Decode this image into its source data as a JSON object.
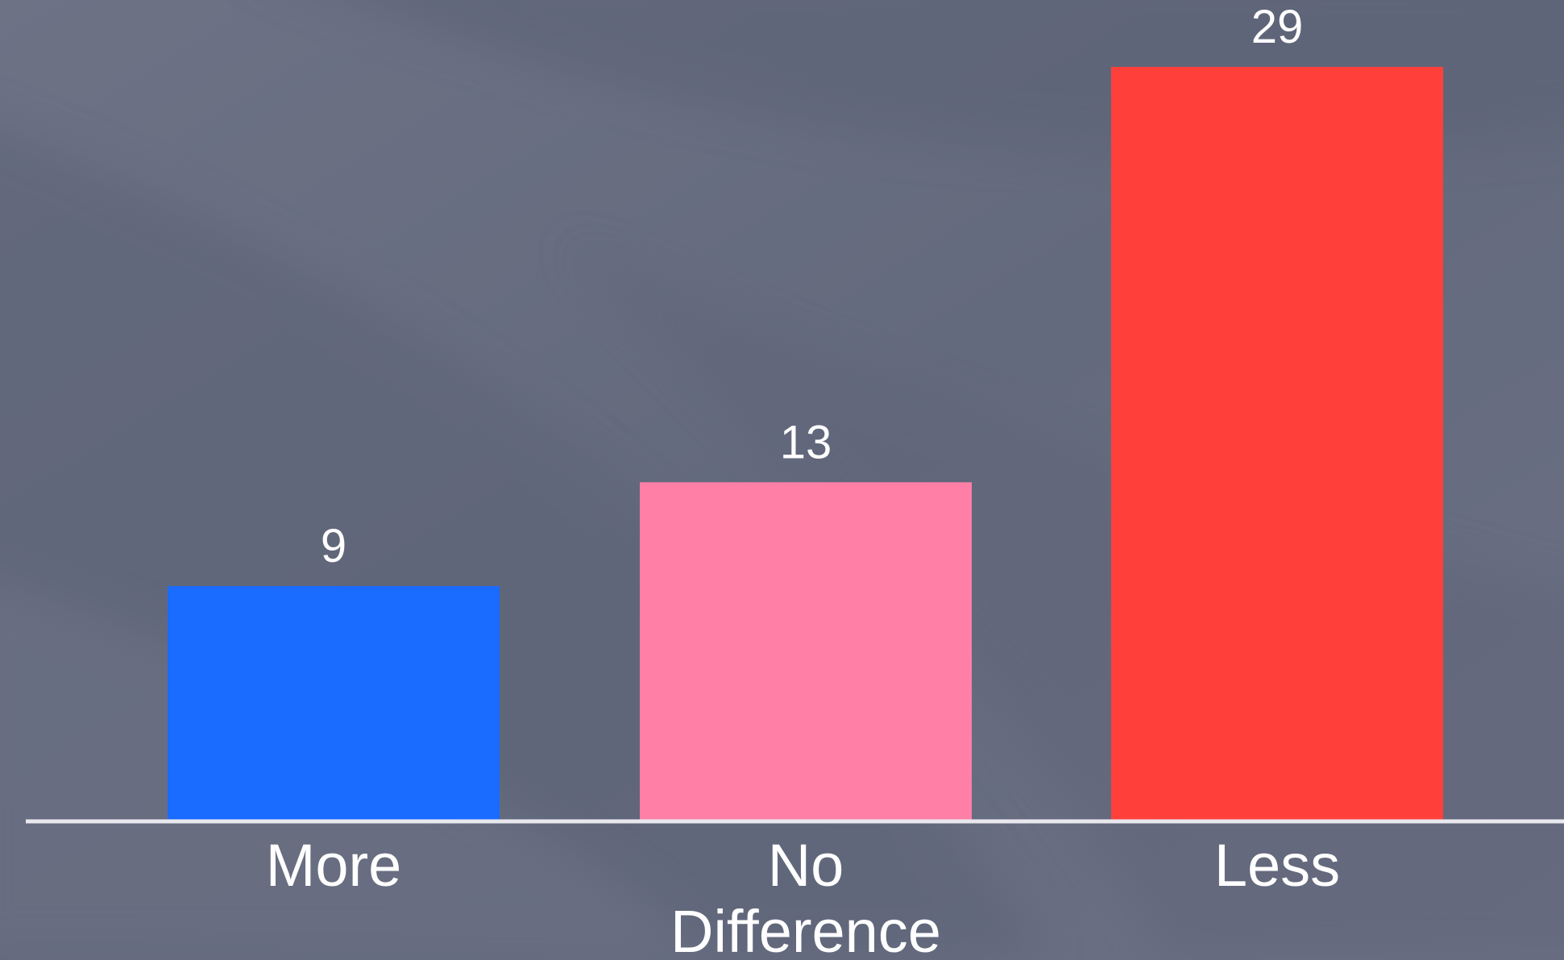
{
  "chart_data": {
    "type": "bar",
    "title": "",
    "xlabel": "",
    "ylabel": "",
    "categories": [
      [
        "More"
      ],
      [
        "No",
        "Difference"
      ],
      [
        "Less"
      ]
    ],
    "values": [
      9,
      13,
      29
    ],
    "colors": [
      "#1a6bff",
      "#ff7fa7",
      "#ff403a"
    ],
    "ylim": [
      0,
      29
    ],
    "grid": false,
    "legend": "none",
    "data_labels": true,
    "background_color": "#686d80",
    "axis_line_color": "#e8e8ee",
    "text_color": "#ffffff"
  }
}
